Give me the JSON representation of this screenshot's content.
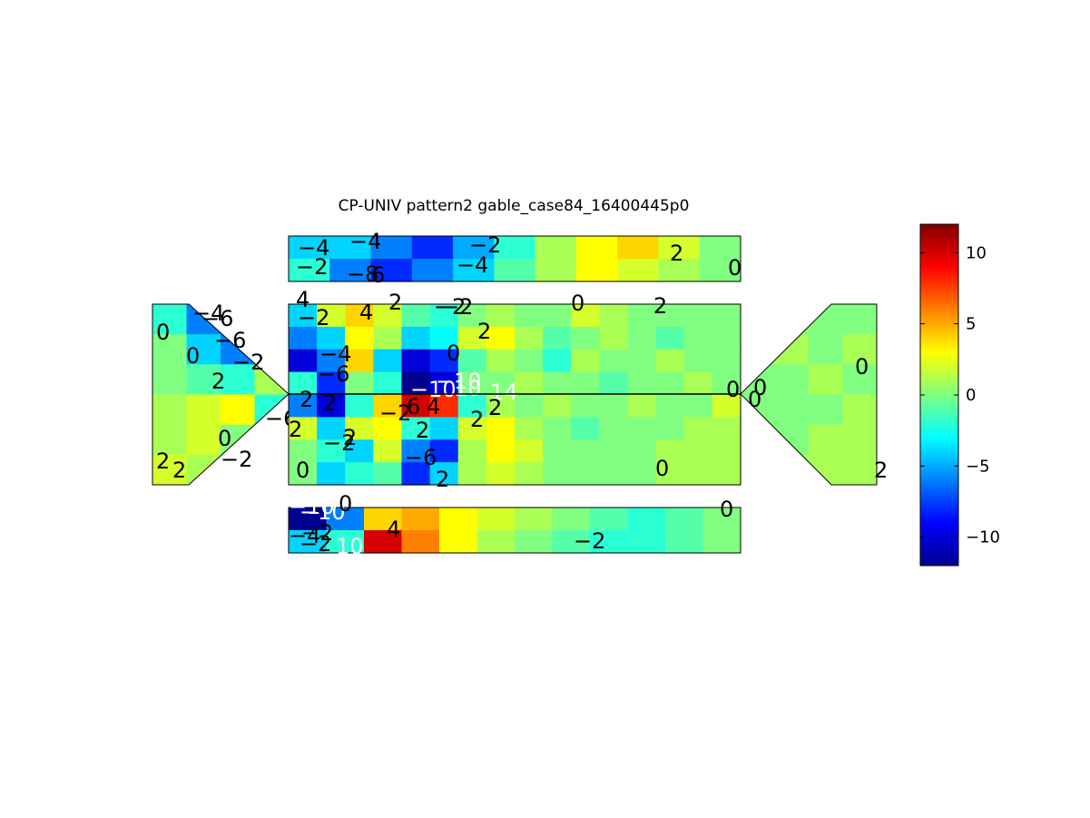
{
  "chart_data": {
    "type": "heatmap",
    "title": "CP-UNIV pattern2 gable_case84_16400445p0",
    "colormap": "jet",
    "clim": [
      -12,
      12
    ],
    "colorbar": {
      "ticks": [
        10,
        5,
        0,
        -5,
        -10
      ],
      "tick_labels": [
        "10",
        "5",
        "0",
        "−5",
        "−10"
      ]
    },
    "panels": [
      {
        "id": "top-wall",
        "shape": "rect",
        "samples": [
          [
            -4,
            -4,
            -6,
            -8,
            -5,
            -2,
            1,
            3,
            4,
            2,
            0
          ],
          [
            -2,
            -6,
            -8,
            -6,
            -4,
            -1,
            1,
            3,
            2,
            1,
            0
          ]
        ],
        "contour_labels": [
          "−4",
          "−4",
          "−2",
          "−2",
          "−8",
          "6",
          "−4",
          "2",
          "0"
        ]
      },
      {
        "id": "left-gable",
        "shape": "gable-left",
        "samples": [
          [
            -2,
            -6,
            -8,
            -4
          ],
          [
            0,
            -4,
            -6,
            -2
          ],
          [
            0,
            -1,
            -2,
            1
          ],
          [
            1,
            2,
            3,
            -2
          ],
          [
            1,
            2,
            0,
            -3
          ],
          [
            2,
            1,
            -2,
            -1
          ]
        ],
        "contour_labels": [
          "−4",
          "−6",
          "0",
          "−6",
          "0",
          "−2",
          "2",
          "−6",
          "0",
          "2",
          "2",
          "−2"
        ]
      },
      {
        "id": "roof",
        "shape": "rect",
        "samples": [
          [
            -4,
            2,
            4,
            2,
            -1,
            -2,
            0,
            1,
            0,
            0,
            2,
            1,
            0,
            0,
            0,
            0
          ],
          [
            -6,
            -4,
            3,
            1,
            -4,
            -3,
            2,
            3,
            1,
            -1,
            0,
            1,
            0,
            -1,
            0,
            0
          ],
          [
            -10,
            -6,
            4,
            -4,
            -10,
            -8,
            -1,
            1,
            0,
            -2,
            1,
            0,
            0,
            1,
            0,
            0
          ],
          [
            -2,
            -8,
            0,
            -2,
            -12,
            -10,
            0,
            0,
            1,
            0,
            0,
            -1,
            0,
            0,
            1,
            0
          ],
          [
            -6,
            -10,
            -2,
            4,
            10,
            8,
            -2,
            1,
            0,
            1,
            0,
            0,
            1,
            0,
            0,
            2
          ],
          [
            2,
            -4,
            2,
            3,
            -2,
            -4,
            2,
            3,
            1,
            0,
            -1,
            0,
            0,
            0,
            1,
            1
          ],
          [
            0,
            -2,
            -4,
            2,
            -6,
            -8,
            1,
            3,
            2,
            0,
            0,
            0,
            0,
            1,
            1,
            1
          ],
          [
            0,
            -4,
            -2,
            -1,
            -8,
            -4,
            1,
            2,
            1,
            0,
            0,
            0,
            0,
            1,
            1,
            1
          ]
        ],
        "contour_labels": [
          "4",
          "−2",
          "−2",
          "4",
          "2",
          "−2",
          "0",
          "2",
          "2",
          "−4",
          "0",
          "−6",
          "−10",
          "−10",
          "10",
          "14",
          "0",
          "2",
          "2",
          "2",
          "−2",
          "6",
          "4",
          "2",
          "2",
          "−2",
          "2",
          "−6",
          "2",
          "0",
          "0",
          "2"
        ]
      },
      {
        "id": "right-gable",
        "shape": "gable-right",
        "samples": [
          [
            0,
            0,
            0,
            0
          ],
          [
            0,
            1,
            0,
            1
          ],
          [
            0,
            0,
            1,
            0
          ],
          [
            0,
            0,
            0,
            1
          ],
          [
            1,
            0,
            1,
            1
          ],
          [
            2,
            1,
            1,
            1
          ]
        ],
        "contour_labels": [
          "0",
          "0",
          "0",
          "2"
        ]
      },
      {
        "id": "bottom-wall",
        "shape": "rect",
        "samples": [
          [
            -12,
            -6,
            4,
            5,
            3,
            2,
            1,
            0,
            -1,
            -2,
            -1,
            0
          ],
          [
            -4,
            -2,
            10,
            6,
            3,
            1,
            0,
            -1,
            -2,
            -2,
            -1,
            0
          ]
        ],
        "contour_labels": [
          "−10",
          "−10",
          "0",
          "−2",
          "−4",
          "−2",
          "10",
          "4",
          "−2",
          "0"
        ]
      }
    ]
  }
}
